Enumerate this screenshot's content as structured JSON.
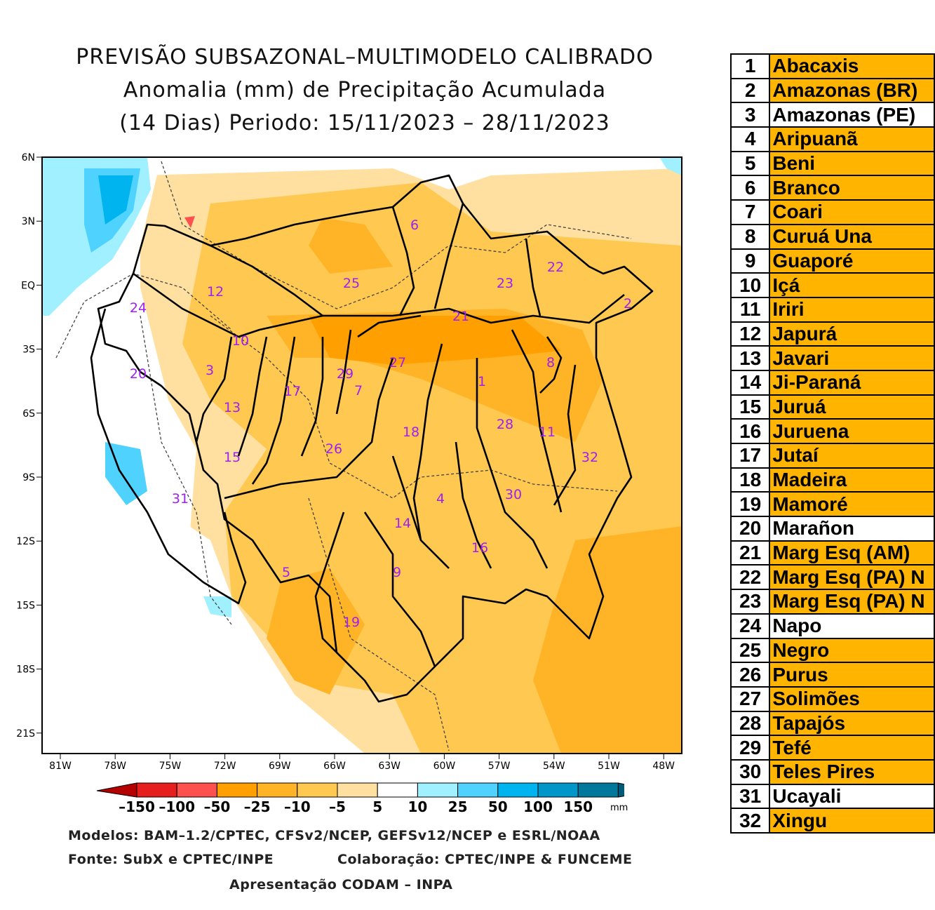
{
  "title": {
    "line1": "PREVISÃO SUBSAZONAL–MULTIMODELO CALIBRADO",
    "line2": "Anomalia (mm) de Precipitação Acumulada",
    "line3": "(14 Dias) Periodo: 15/11/2023 – 28/11/2023"
  },
  "map": {
    "lat_ticks": [
      "6N",
      "3N",
      "EQ",
      "3S",
      "6S",
      "9S",
      "12S",
      "15S",
      "18S",
      "21S"
    ],
    "lon_ticks": [
      "81W",
      "78W",
      "75W",
      "72W",
      "69W",
      "66W",
      "63W",
      "60W",
      "57W",
      "54W",
      "51W",
      "48W"
    ],
    "basin_labels": [
      "1",
      "2",
      "3",
      "4",
      "5",
      "6",
      "7",
      "8",
      "9",
      "10",
      "11",
      "12",
      "13",
      "14",
      "15",
      "16",
      "17",
      "18",
      "19",
      "20",
      "21",
      "22",
      "23",
      "24",
      "25",
      "26",
      "27",
      "28",
      "29",
      "30",
      "31",
      "32"
    ]
  },
  "colorbar": {
    "labels": [
      "–150",
      "–100",
      "–50",
      "–25",
      "–10",
      "–5",
      "5",
      "10",
      "25",
      "50",
      "100",
      "150"
    ],
    "unit": "mm",
    "colors": [
      "#b40000",
      "#e61e1e",
      "#ff5050",
      "#ffa000",
      "#ffb428",
      "#ffc850",
      "#ffe0a0",
      "#ffffff",
      "#a0f0ff",
      "#50d2ff",
      "#00b4f0",
      "#0096c8",
      "#00789b",
      "#005a78"
    ]
  },
  "credits": {
    "models": "Modelos: BAM–1.2/CPTEC, CFSv2/NCEP, GEFSv12/NCEP e ESRL/NOAA",
    "source": "Fonte: SubX e CPTEC/INPE",
    "collab": "Colaboração: CPTEC/INPE & FUNCEME",
    "presentation": "Apresentação CODAM – INPA"
  },
  "legend": [
    {
      "num": "1",
      "name": "Abacaxis",
      "color": "#ffb400"
    },
    {
      "num": "2",
      "name": "Amazonas (BR)",
      "color": "#ffb400"
    },
    {
      "num": "3",
      "name": "Amazonas (PE)",
      "color": "#ffffff"
    },
    {
      "num": "4",
      "name": "Aripuanã",
      "color": "#ffb400"
    },
    {
      "num": "5",
      "name": "Beni",
      "color": "#ffb400"
    },
    {
      "num": "6",
      "name": "Branco",
      "color": "#ffb400"
    },
    {
      "num": "7",
      "name": "Coari",
      "color": "#ffb400"
    },
    {
      "num": "8",
      "name": "Curuá Una",
      "color": "#ffb400"
    },
    {
      "num": "9",
      "name": "Guaporé",
      "color": "#ffb400"
    },
    {
      "num": "10",
      "name": "Içá",
      "color": "#ffb400"
    },
    {
      "num": "11",
      "name": "Iriri",
      "color": "#ffb400"
    },
    {
      "num": "12",
      "name": "Japurá",
      "color": "#ffb400"
    },
    {
      "num": "13",
      "name": "Javari",
      "color": "#ffb400"
    },
    {
      "num": "14",
      "name": "Ji-Paraná",
      "color": "#ffb400"
    },
    {
      "num": "15",
      "name": "Juruá",
      "color": "#ffb400"
    },
    {
      "num": "16",
      "name": "Juruena",
      "color": "#ffb400"
    },
    {
      "num": "17",
      "name": "Jutaí",
      "color": "#ffb400"
    },
    {
      "num": "18",
      "name": "Madeira",
      "color": "#ffb400"
    },
    {
      "num": "19",
      "name": "Mamoré",
      "color": "#ffb400"
    },
    {
      "num": "20",
      "name": "Marañon",
      "color": "#ffffff"
    },
    {
      "num": "21",
      "name": "Marg Esq (AM)",
      "color": "#ffb400"
    },
    {
      "num": "22",
      "name": "Marg Esq (PA) N",
      "color": "#ffb400"
    },
    {
      "num": "23",
      "name": "Marg Esq (PA) N",
      "color": "#ffb400"
    },
    {
      "num": "24",
      "name": "Napo",
      "color": "#ffffff"
    },
    {
      "num": "25",
      "name": "Negro",
      "color": "#ffb400"
    },
    {
      "num": "26",
      "name": "Purus",
      "color": "#ffb400"
    },
    {
      "num": "27",
      "name": "Solimões",
      "color": "#ffb400"
    },
    {
      "num": "28",
      "name": "Tapajós",
      "color": "#ffb400"
    },
    {
      "num": "29",
      "name": "Tefé",
      "color": "#ffb400"
    },
    {
      "num": "30",
      "name": "Teles Pires",
      "color": "#ffb400"
    },
    {
      "num": "31",
      "name": "Ucayali",
      "color": "#ffffff"
    },
    {
      "num": "32",
      "name": "Xingu",
      "color": "#ffb400"
    }
  ]
}
